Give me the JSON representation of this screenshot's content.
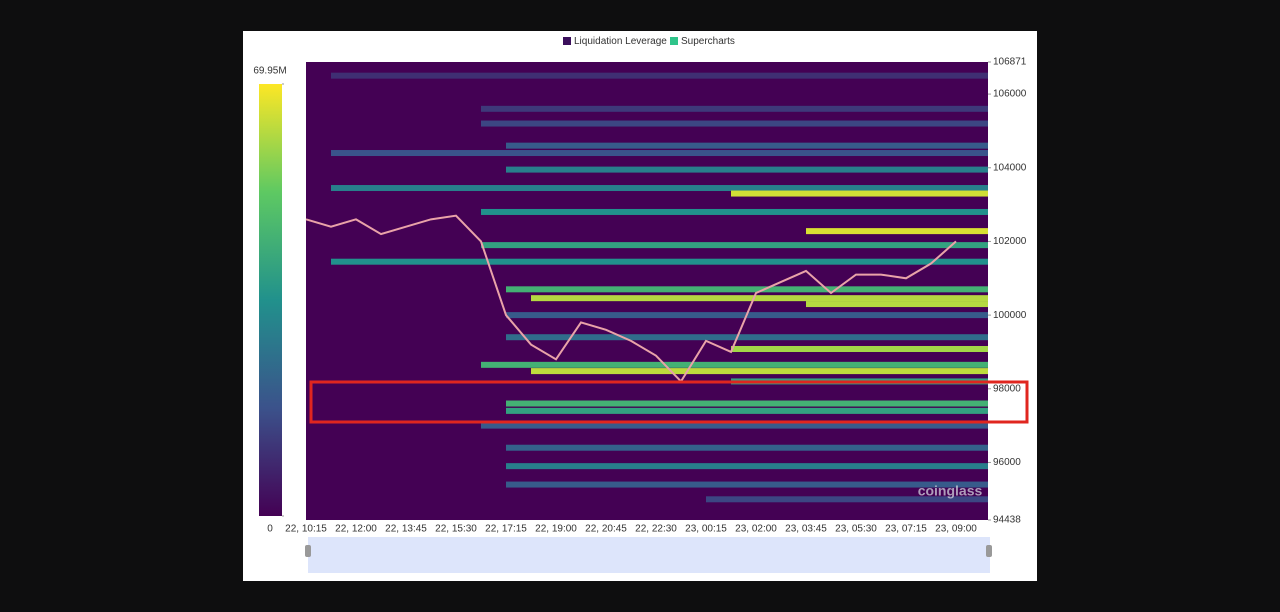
{
  "chart_data": {
    "type": "heatmap",
    "series": [
      {
        "name": "Liquidation Leverage",
        "color": "#3b0f5c"
      },
      {
        "name": "Supercharts",
        "color": "#2fc48a"
      }
    ],
    "x": [
      "22, 10:15",
      null,
      "22, 12:00",
      null,
      "22, 13:45",
      null,
      "22, 15:30",
      null,
      "22, 17:15",
      null,
      "22, 19:00",
      null,
      "22, 20:45",
      null,
      "22, 22:30",
      null,
      "23, 00:15",
      null,
      "23, 02:00",
      null,
      "23, 03:45",
      null,
      "23, 05:30",
      null,
      "23, 07:15",
      null,
      "23, 09:00"
    ],
    "price": [
      102600,
      102400,
      102600,
      102200,
      102400,
      102600,
      102700,
      102000,
      100000,
      99200,
      98800,
      99800,
      99600,
      99300,
      98900,
      98200,
      99300,
      99000,
      100600,
      100900,
      101200,
      100600,
      101100,
      101100,
      101000,
      101400,
      102000
    ],
    "price_color": "#e9a3a8",
    "ylim": [
      94438,
      106871
    ],
    "yticks": [
      94438,
      96000,
      98000,
      100000,
      102000,
      104000,
      106000,
      106871
    ],
    "clim": [
      0,
      69950000
    ],
    "cticks": [
      0,
      {
        "value": 69950000,
        "label": "69.95M"
      }
    ],
    "bands": [
      {
        "price": 106500,
        "start": 1,
        "value": 10000000
      },
      {
        "price": 105600,
        "start": 7,
        "value": 12000000
      },
      {
        "price": 105200,
        "start": 7,
        "value": 15000000
      },
      {
        "price": 104600,
        "start": 8,
        "value": 20000000
      },
      {
        "price": 104400,
        "start": 1,
        "value": 18000000
      },
      {
        "price": 103950,
        "start": 8,
        "value": 30000000
      },
      {
        "price": 103450,
        "start": 1,
        "value": 30000000
      },
      {
        "price": 103300,
        "start": 17,
        "value": 65000000
      },
      {
        "price": 102800,
        "start": 7,
        "value": 35000000
      },
      {
        "price": 102280,
        "start": 20,
        "value": 66000000
      },
      {
        "price": 101900,
        "start": 7,
        "value": 40000000
      },
      {
        "price": 101450,
        "start": 1,
        "value": 35000000
      },
      {
        "price": 100700,
        "start": 8,
        "value": 45000000
      },
      {
        "price": 100460,
        "start": 9,
        "value": 62000000
      },
      {
        "price": 100300,
        "start": 20,
        "value": 62000000
      },
      {
        "price": 100000,
        "start": 8,
        "value": 20000000
      },
      {
        "price": 99400,
        "start": 8,
        "value": 25000000
      },
      {
        "price": 99080,
        "start": 17,
        "value": 60000000
      },
      {
        "price": 98650,
        "start": 7,
        "value": 45000000
      },
      {
        "price": 98480,
        "start": 9,
        "value": 63000000
      },
      {
        "price": 98200,
        "start": 17,
        "value": 40000000
      },
      {
        "price": 97600,
        "start": 8,
        "value": 45000000
      },
      {
        "price": 97400,
        "start": 8,
        "value": 40000000
      },
      {
        "price": 97000,
        "start": 7,
        "value": 20000000
      },
      {
        "price": 96400,
        "start": 8,
        "value": 22000000
      },
      {
        "price": 95900,
        "start": 8,
        "value": 30000000
      },
      {
        "price": 95400,
        "start": 8,
        "value": 20000000
      },
      {
        "price": 95000,
        "start": 16,
        "value": 15000000
      }
    ],
    "watermark": "coinglass"
  }
}
